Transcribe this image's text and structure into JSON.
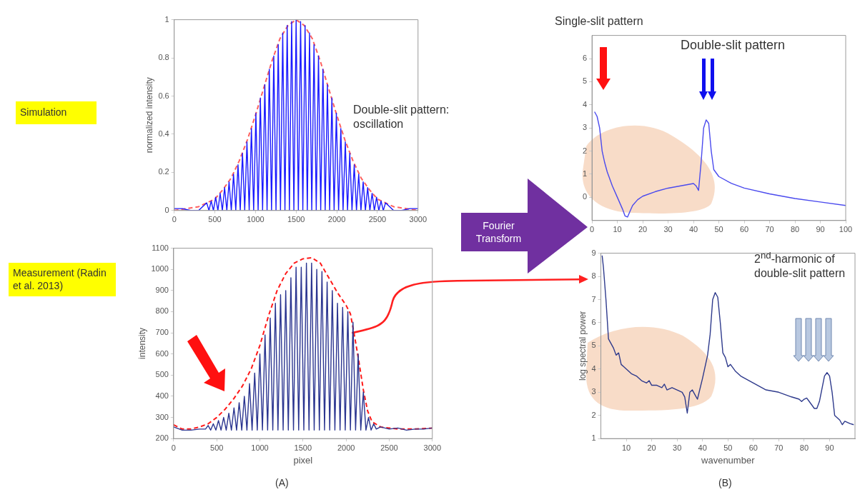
{
  "chart_data": [
    {
      "type": "line",
      "ylabel": "normalized intensity",
      "xlim": [
        0,
        3000
      ],
      "xticks": [
        0,
        500,
        1000,
        1500,
        2000,
        2500,
        3000
      ],
      "ylim": [
        0,
        1
      ],
      "yticks": [
        0,
        0.2,
        0.4,
        0.6,
        0.8,
        1
      ],
      "annotations": [
        "Simulation",
        "Double-slit pattern: oscillation"
      ],
      "series": [
        {
          "color": "#1a1aff",
          "x": [
            0,
            100,
            200,
            300,
            400,
            427.5,
            455,
            482.5,
            510,
            537.5,
            565,
            592.5,
            620,
            647.5,
            675,
            702.5,
            730,
            757.5,
            785,
            812.5,
            840,
            867.5,
            895,
            922.5,
            950,
            977.5,
            1005,
            1032.5,
            1060,
            1087.5,
            1115,
            1142.5,
            1170,
            1197.5,
            1225,
            1252.5,
            1280,
            1307.5,
            1335,
            1362.5,
            1390,
            1417.5,
            1445,
            1472.5,
            1500,
            1527.5,
            1555,
            1582.5,
            1610,
            1637.5,
            1665,
            1692.5,
            1720,
            1747.5,
            1775,
            1802.5,
            1830,
            1857.5,
            1885,
            1912.5,
            1940,
            1967.5,
            1995,
            2022.5,
            2050,
            2077.5,
            2105,
            2132.5,
            2160,
            2187.5,
            2215,
            2242.5,
            2270,
            2297.5,
            2325,
            2352.5,
            2380,
            2407.5,
            2435,
            2462.5,
            2490,
            2517.5,
            2545,
            2572.5,
            2600,
            2700,
            2800,
            2900,
            3000
          ],
          "values": [
            0.01,
            0.01,
            0,
            0,
            0.04,
            0,
            0.05,
            0,
            0.07,
            0,
            0.09,
            0,
            0.12,
            0,
            0.15,
            0,
            0.19,
            0,
            0.24,
            0,
            0.3,
            0,
            0.36,
            0,
            0.43,
            0,
            0.51,
            0,
            0.59,
            0,
            0.66,
            0,
            0.74,
            0,
            0.81,
            0,
            0.87,
            0,
            0.93,
            0,
            0.97,
            0,
            0.99,
            0,
            1,
            0,
            0.99,
            0,
            0.97,
            0,
            0.93,
            0,
            0.87,
            0,
            0.81,
            0,
            0.74,
            0,
            0.66,
            0,
            0.59,
            0,
            0.51,
            0,
            0.43,
            0,
            0.36,
            0,
            0.3,
            0,
            0.24,
            0,
            0.19,
            0,
            0.15,
            0,
            0.12,
            0,
            0.09,
            0,
            0.07,
            0,
            0.05,
            0,
            0.04,
            0,
            0,
            0.01,
            0.01
          ]
        },
        {
          "color": "#ff6060",
          "line_style": "dashed",
          "x": [
            0,
            300,
            400,
            500,
            600,
            700,
            800,
            900,
            1000,
            1100,
            1200,
            1300,
            1400,
            1500,
            1600,
            1700,
            1800,
            1900,
            2000,
            2100,
            2200,
            2300,
            2400,
            2500,
            2600,
            2700,
            3000
          ],
          "values": [
            0,
            0.02,
            0.04,
            0.06,
            0.11,
            0.17,
            0.26,
            0.37,
            0.5,
            0.64,
            0.78,
            0.9,
            0.97,
            1,
            0.97,
            0.9,
            0.78,
            0.64,
            0.5,
            0.37,
            0.26,
            0.17,
            0.11,
            0.06,
            0.04,
            0.02,
            0
          ]
        }
      ]
    },
    {
      "type": "line",
      "xlabel": "pixel",
      "ylabel": "intensity",
      "xlim": [
        0,
        3000
      ],
      "xticks": [
        0,
        500,
        1000,
        1500,
        2000,
        2500,
        3000
      ],
      "ylim": [
        200,
        1100
      ],
      "yticks": [
        200,
        300,
        400,
        500,
        600,
        700,
        800,
        900,
        1000,
        1100
      ],
      "annotations": [
        "Measurement (Radin et al. 2013)",
        "(A)"
      ],
      "series": [
        {
          "color": "#2b3590",
          "x": [
            0,
            100,
            200,
            300,
            370,
            400,
            430,
            460,
            490,
            520,
            550,
            580,
            610,
            640,
            670,
            700,
            730,
            760,
            790,
            820,
            850,
            880,
            910,
            940,
            970,
            1000,
            1030,
            1060,
            1090,
            1120,
            1150,
            1180,
            1210,
            1240,
            1270,
            1300,
            1330,
            1360,
            1390,
            1420,
            1450,
            1480,
            1510,
            1540,
            1570,
            1600,
            1630,
            1660,
            1690,
            1720,
            1750,
            1780,
            1810,
            1840,
            1870,
            1900,
            1930,
            1960,
            1990,
            2020,
            2050,
            2080,
            2110,
            2140,
            2170,
            2200,
            2230,
            2260,
            2290,
            2320,
            2350,
            2400,
            2500,
            2600,
            2700,
            2800,
            2900,
            3000
          ],
          "values": [
            255,
            240,
            240,
            245,
            245,
            262,
            240,
            270,
            240,
            285,
            240,
            300,
            240,
            320,
            240,
            345,
            240,
            370,
            240,
            400,
            240,
            460,
            240,
            510,
            240,
            600,
            240,
            690,
            240,
            770,
            240,
            840,
            240,
            880,
            240,
            900,
            240,
            960,
            240,
            1010,
            240,
            1010,
            240,
            1030,
            240,
            1030,
            240,
            1000,
            240,
            990,
            240,
            940,
            240,
            900,
            240,
            840,
            240,
            820,
            240,
            800,
            240,
            750,
            240,
            600,
            240,
            420,
            240,
            300,
            240,
            270,
            245,
            255,
            245,
            250,
            240,
            245,
            245,
            250
          ]
        },
        {
          "color": "#ff1a1a",
          "line_style": "dashed",
          "x": [
            0,
            100,
            200,
            300,
            400,
            500,
            600,
            700,
            800,
            900,
            1000,
            1100,
            1200,
            1300,
            1400,
            1500,
            1600,
            1700,
            1800,
            1900,
            2000,
            2050,
            2100,
            2150,
            2200,
            2250,
            2300,
            2400,
            2500,
            2600,
            2800,
            3000
          ],
          "values": [
            265,
            245,
            245,
            255,
            270,
            300,
            340,
            390,
            450,
            530,
            640,
            780,
            900,
            980,
            1030,
            1050,
            1055,
            1030,
            960,
            890,
            830,
            790,
            680,
            560,
            430,
            330,
            280,
            255,
            250,
            245,
            245,
            250
          ]
        }
      ]
    },
    {
      "type": "line",
      "xlim": [
        0,
        100
      ],
      "xticks": [
        0,
        10,
        20,
        30,
        40,
        50,
        60,
        70,
        80,
        90,
        100
      ],
      "ylim": [
        -1,
        7
      ],
      "yticks": [
        0,
        1,
        2,
        3,
        4,
        5,
        6
      ],
      "annotations": [
        "Fourier Transform",
        "Single-slit pattern",
        "Double-slit pattern"
      ],
      "series": [
        {
          "color": "#4a4aee",
          "x": [
            1,
            2,
            3,
            4,
            5,
            6,
            8,
            10,
            12,
            13,
            14,
            15,
            16,
            18,
            20,
            25,
            30,
            35,
            40,
            41,
            42,
            43,
            44,
            45,
            46,
            47,
            48,
            50,
            55,
            60,
            70,
            80,
            90,
            100
          ],
          "values": [
            3.7,
            3.5,
            3,
            2,
            1.5,
            1.1,
            0.5,
            0,
            -0.5,
            -0.8,
            -0.85,
            -0.6,
            -0.35,
            -0.1,
            0.05,
            0.25,
            0.4,
            0.5,
            0.6,
            0.5,
            0.3,
            1.5,
            3,
            3.35,
            3.2,
            2,
            1.2,
            0.9,
            0.6,
            0.4,
            0.15,
            -0.05,
            -0.2,
            -0.35
          ]
        }
      ]
    },
    {
      "type": "line",
      "xlabel": "wavenumber",
      "ylabel": "log spectral power",
      "xlim": [
        0,
        100
      ],
      "xticks": [
        10,
        20,
        30,
        40,
        50,
        60,
        70,
        80,
        90
      ],
      "ylim": [
        1,
        9
      ],
      "yticks": [
        1,
        2,
        3,
        4,
        5,
        6,
        7,
        8,
        9
      ],
      "annotations": [
        "2$^{nd}$-harmonic of double-slit pattern",
        "(B)"
      ],
      "series": [
        {
          "color": "#2e3a8c",
          "x": [
            0.5,
            1,
            2,
            3,
            4,
            5,
            6,
            7,
            8,
            9,
            10,
            12,
            14,
            16,
            18,
            19,
            20,
            22,
            24,
            25,
            26,
            28,
            30,
            32,
            33,
            34,
            35,
            36,
            37,
            38,
            40,
            42,
            43,
            44,
            45,
            46,
            47,
            48,
            49,
            50,
            51,
            53,
            55,
            60,
            65,
            70,
            75,
            78,
            79,
            80,
            81,
            82,
            84,
            85,
            86,
            88,
            89,
            90,
            91,
            92,
            93,
            94,
            95,
            96,
            98,
            99.5
          ],
          "values": [
            8.9,
            8.4,
            7,
            5.3,
            5.1,
            4.9,
            4.6,
            4.7,
            4.2,
            4.1,
            4,
            3.8,
            3.7,
            3.5,
            3.4,
            3.5,
            3.3,
            3.3,
            3.2,
            3.35,
            3.1,
            3.2,
            3.1,
            3,
            2.8,
            2.1,
            3,
            3.1,
            2.9,
            2.7,
            3.6,
            4.6,
            5.5,
            7,
            7.3,
            7.1,
            6,
            4.7,
            4.5,
            4.1,
            4.2,
            3.9,
            3.7,
            3.4,
            3.1,
            3,
            2.8,
            2.7,
            2.6,
            2.7,
            2.75,
            2.6,
            2.3,
            2.3,
            2.6,
            3.7,
            3.85,
            3.7,
            3,
            2,
            1.9,
            1.8,
            1.6,
            1.75,
            1.65,
            1.6
          ]
        }
      ]
    }
  ]
}
